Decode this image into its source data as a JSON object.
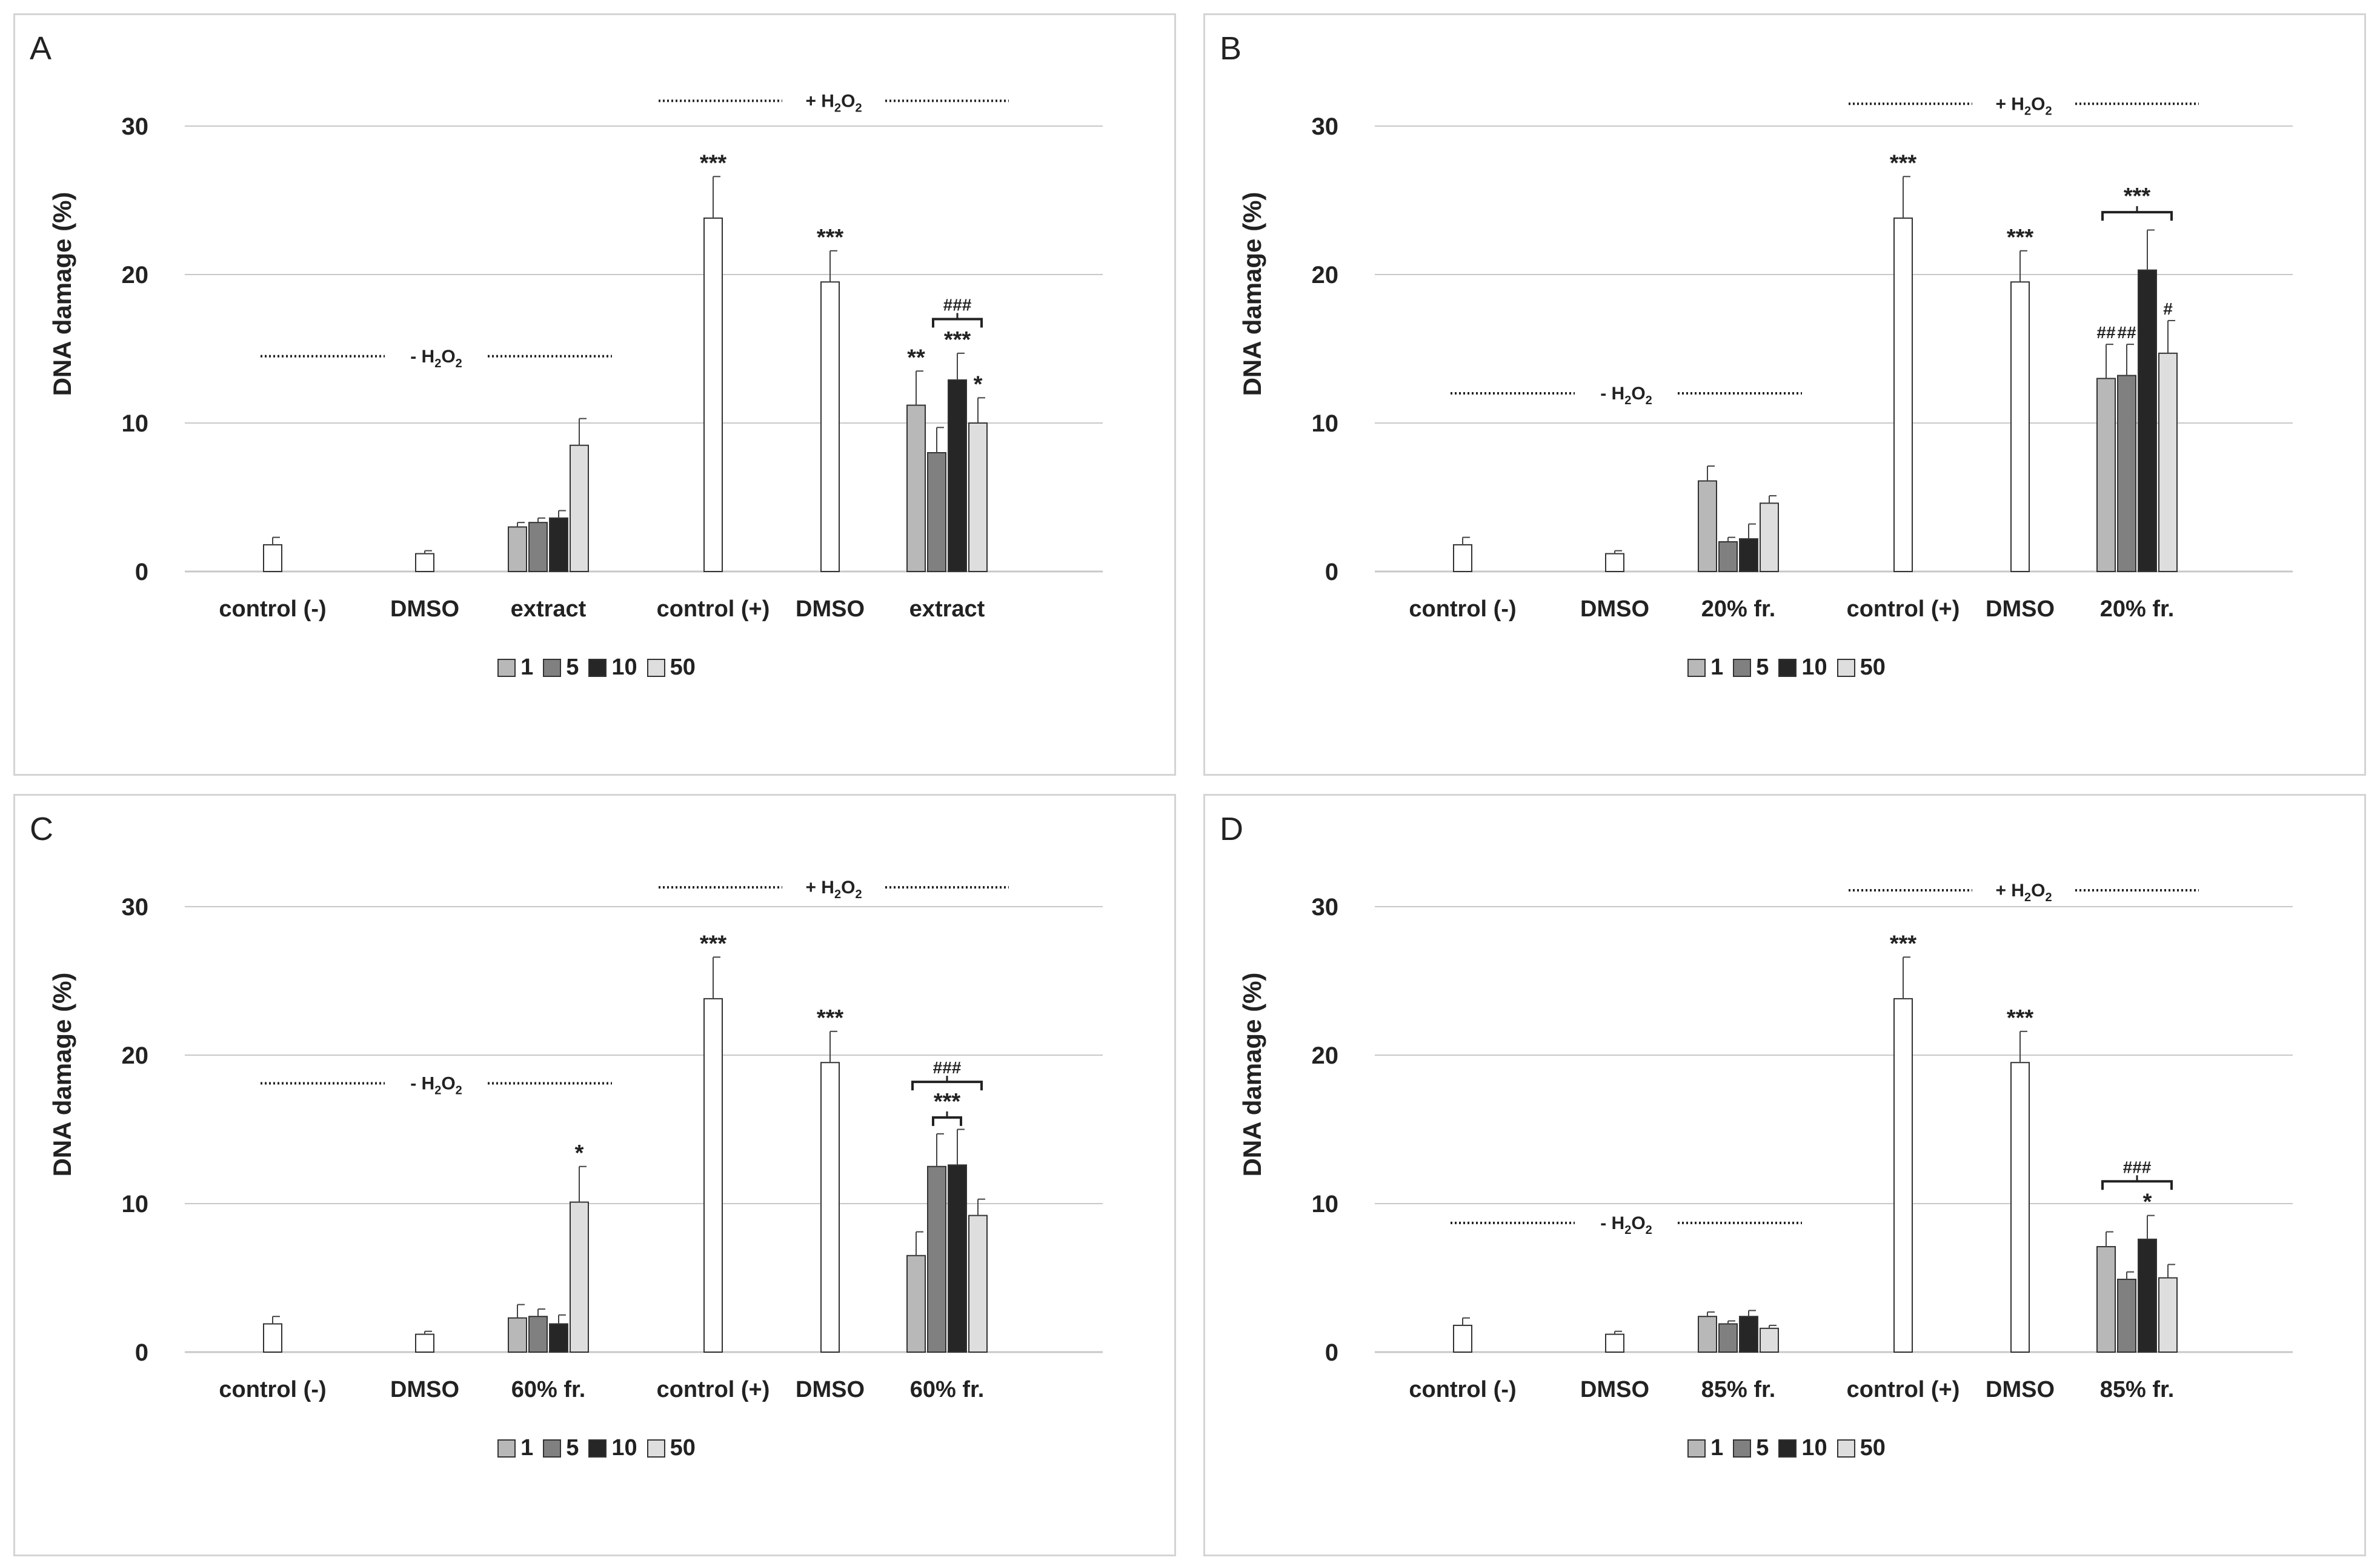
{
  "colors": {
    "1": "#b8b8b8",
    "5": "#808080",
    "10": "#262626",
    "50": "#dedede",
    "single": "#ffffff",
    "axis": "#c8c8c8",
    "text": "#222222"
  },
  "legend": [
    "1",
    "5",
    "10",
    "50"
  ],
  "chart_data": [
    {
      "panel": "A",
      "type": "bar",
      "ylabel": "DNA damage (%)",
      "ylim": [
        0,
        30
      ],
      "yticks": [
        "0",
        "10",
        "20",
        "30"
      ],
      "group_labels": {
        "minus": "- H2O2",
        "plus": "+ H2O2"
      },
      "minus_label_level": 14.5,
      "plus_label_level": 31.7,
      "categories": [
        "control (-)",
        "DMSO",
        "extract",
        "control (+)",
        "DMSO",
        "extract"
      ],
      "groups": [
        {
          "bars": [
            {
              "v": 1.8,
              "e": 0.5,
              "s": "single"
            }
          ]
        },
        {
          "bars": [
            {
              "v": 1.2,
              "e": 0.2,
              "s": "single"
            }
          ]
        },
        {
          "bars": [
            {
              "v": 3.0,
              "e": 0.3,
              "s": "1"
            },
            {
              "v": 3.3,
              "e": 0.3,
              "s": "5"
            },
            {
              "v": 3.6,
              "e": 0.5,
              "s": "10"
            },
            {
              "v": 8.5,
              "e": 1.8,
              "s": "50"
            }
          ]
        },
        {
          "bars": [
            {
              "v": 23.8,
              "e": 2.8,
              "s": "single",
              "ann": "***"
            }
          ]
        },
        {
          "bars": [
            {
              "v": 19.5,
              "e": 2.1,
              "s": "single",
              "ann": "***"
            }
          ]
        },
        {
          "bars": [
            {
              "v": 11.2,
              "e": 2.3,
              "s": "1",
              "ann": "**"
            },
            {
              "v": 8.0,
              "e": 1.7,
              "s": "5"
            },
            {
              "v": 12.9,
              "e": 1.8,
              "s": "10",
              "ann": "***"
            },
            {
              "v": 10.0,
              "e": 1.7,
              "s": "50",
              "ann": "*"
            }
          ],
          "brackets": [
            {
              "from": 2,
              "to": 4,
              "level": 17.0,
              "label": "###"
            }
          ]
        }
      ]
    },
    {
      "panel": "B",
      "type": "bar",
      "ylabel": "DNA damage (%)",
      "ylim": [
        0,
        30
      ],
      "yticks": [
        "0",
        "10",
        "20",
        "30"
      ],
      "group_labels": {
        "minus": "- H2O2",
        "plus": "+ H2O2"
      },
      "minus_label_level": 12.0,
      "plus_label_level": 31.5,
      "categories": [
        "control (-)",
        "DMSO",
        "20% fr.",
        "control (+)",
        "DMSO",
        "20% fr."
      ],
      "groups": [
        {
          "bars": [
            {
              "v": 1.8,
              "e": 0.5,
              "s": "single"
            }
          ]
        },
        {
          "bars": [
            {
              "v": 1.2,
              "e": 0.2,
              "s": "single"
            }
          ]
        },
        {
          "bars": [
            {
              "v": 6.1,
              "e": 1.0,
              "s": "1"
            },
            {
              "v": 2.0,
              "e": 0.3,
              "s": "5"
            },
            {
              "v": 2.2,
              "e": 1.0,
              "s": "10"
            },
            {
              "v": 4.6,
              "e": 0.5,
              "s": "50"
            }
          ]
        },
        {
          "bars": [
            {
              "v": 23.8,
              "e": 2.8,
              "s": "single",
              "ann": "***"
            }
          ]
        },
        {
          "bars": [
            {
              "v": 19.5,
              "e": 2.1,
              "s": "single",
              "ann": "***"
            }
          ]
        },
        {
          "bars": [
            {
              "v": 13.0,
              "e": 2.3,
              "s": "1",
              "ann": "##"
            },
            {
              "v": 13.2,
              "e": 2.1,
              "s": "5",
              "ann": "##"
            },
            {
              "v": 20.3,
              "e": 2.7,
              "s": "10"
            },
            {
              "v": 14.7,
              "e": 2.2,
              "s": "50",
              "ann": "#"
            }
          ],
          "brackets": [
            {
              "from": 1,
              "to": 4,
              "level": 24.2,
              "label": "***"
            }
          ]
        }
      ]
    },
    {
      "panel": "C",
      "type": "bar",
      "ylabel": "DNA damage (%)",
      "ylim": [
        0,
        30
      ],
      "yticks": [
        "0",
        "10",
        "20",
        "30"
      ],
      "group_labels": {
        "minus": "- H2O2",
        "plus": "+ H2O2"
      },
      "minus_label_level": 18.1,
      "plus_label_level": 31.3,
      "categories": [
        "control (-)",
        "DMSO",
        "60% fr.",
        "control (+)",
        "DMSO",
        "60% fr."
      ],
      "groups": [
        {
          "bars": [
            {
              "v": 1.9,
              "e": 0.5,
              "s": "single"
            }
          ]
        },
        {
          "bars": [
            {
              "v": 1.2,
              "e": 0.2,
              "s": "single"
            }
          ]
        },
        {
          "bars": [
            {
              "v": 2.3,
              "e": 0.9,
              "s": "1"
            },
            {
              "v": 2.4,
              "e": 0.5,
              "s": "5"
            },
            {
              "v": 1.9,
              "e": 0.6,
              "s": "10"
            },
            {
              "v": 10.1,
              "e": 2.4,
              "s": "50",
              "ann": "*"
            }
          ]
        },
        {
          "bars": [
            {
              "v": 23.8,
              "e": 2.8,
              "s": "single",
              "ann": "***"
            }
          ]
        },
        {
          "bars": [
            {
              "v": 19.5,
              "e": 2.1,
              "s": "single",
              "ann": "***"
            }
          ]
        },
        {
          "bars": [
            {
              "v": 6.5,
              "e": 1.6,
              "s": "1"
            },
            {
              "v": 12.5,
              "e": 2.2,
              "s": "5"
            },
            {
              "v": 12.6,
              "e": 2.4,
              "s": "10"
            },
            {
              "v": 9.2,
              "e": 1.1,
              "s": "50"
            }
          ],
          "brackets": [
            {
              "from": 2,
              "to": 3,
              "level": 15.8,
              "label": "***"
            },
            {
              "from": 1,
              "to": 4,
              "level": 18.2,
              "label": "###"
            }
          ]
        }
      ]
    },
    {
      "panel": "D",
      "type": "bar",
      "ylabel": "DNA damage (%)",
      "ylim": [
        0,
        30
      ],
      "yticks": [
        "0",
        "10",
        "20",
        "30"
      ],
      "group_labels": {
        "minus": "- H2O2",
        "plus": "+ H2O2"
      },
      "minus_label_level": 8.7,
      "plus_label_level": 31.1,
      "categories": [
        "control (-)",
        "DMSO",
        "85% fr.",
        "control (+)",
        "DMSO",
        "85% fr."
      ],
      "groups": [
        {
          "bars": [
            {
              "v": 1.8,
              "e": 0.5,
              "s": "single"
            }
          ]
        },
        {
          "bars": [
            {
              "v": 1.2,
              "e": 0.2,
              "s": "single"
            }
          ]
        },
        {
          "bars": [
            {
              "v": 2.4,
              "e": 0.3,
              "s": "1"
            },
            {
              "v": 1.9,
              "e": 0.2,
              "s": "5"
            },
            {
              "v": 2.4,
              "e": 0.4,
              "s": "10"
            },
            {
              "v": 1.6,
              "e": 0.2,
              "s": "50"
            }
          ]
        },
        {
          "bars": [
            {
              "v": 23.8,
              "e": 2.8,
              "s": "single",
              "ann": "***"
            }
          ]
        },
        {
          "bars": [
            {
              "v": 19.5,
              "e": 2.1,
              "s": "single",
              "ann": "***"
            }
          ]
        },
        {
          "bars": [
            {
              "v": 7.1,
              "e": 1.0,
              "s": "1"
            },
            {
              "v": 4.9,
              "e": 0.5,
              "s": "5"
            },
            {
              "v": 7.6,
              "e": 1.6,
              "s": "10",
              "ann": "*"
            },
            {
              "v": 5.0,
              "e": 0.9,
              "s": "50"
            }
          ],
          "brackets": [
            {
              "from": 1,
              "to": 4,
              "level": 11.5,
              "label": "###"
            }
          ]
        }
      ]
    }
  ]
}
